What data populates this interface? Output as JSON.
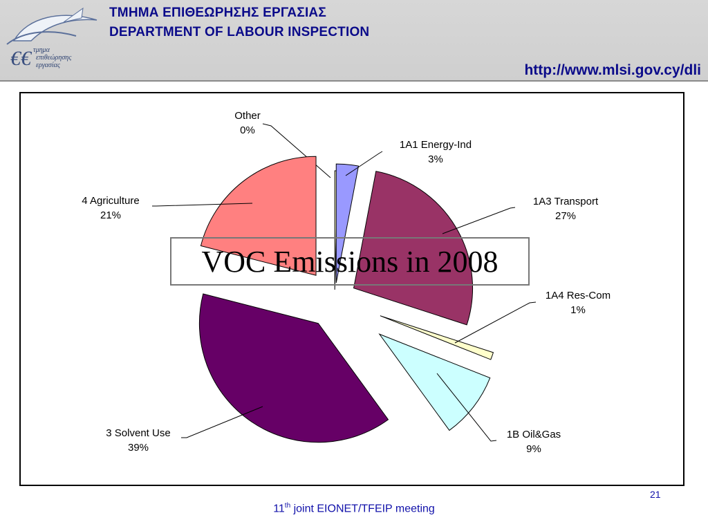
{
  "header": {
    "title_greek": "ΤΜΗΜΑ ΕΠΙΘΕΩΡΗΣΗΣ ΕΡΓΑΣΙΑΣ",
    "title_english": "DEPARTMENT OF LABOUR INSPECTION",
    "url": "http://www.mlsi.gov.cy/dli",
    "logo_text": [
      "τμημα",
      "επιθεώρησης",
      "εργασίας"
    ]
  },
  "overlay_title": "VOC Emissions in 2008",
  "footer": {
    "ordinal": "11",
    "ordinal_suffix": "th",
    "text": " joint EIONET/TFEIP meeting",
    "page_number": "21"
  },
  "chart_data": {
    "type": "pie",
    "title": "VOC Emissions in 2008",
    "slices": [
      {
        "name": "Other",
        "value": 0,
        "label": "0%",
        "color": "#ffffcc"
      },
      {
        "name": "1A1 Energy-Ind",
        "value": 3,
        "label": "3%",
        "color": "#9999ff"
      },
      {
        "name": "1A3 Transport",
        "value": 27,
        "label": "27%",
        "color": "#993366"
      },
      {
        "name": "1A4 Res-Com",
        "value": 1,
        "label": "1%",
        "color": "#ffffcc"
      },
      {
        "name": "1B Oil&Gas",
        "value": 9,
        "label": "9%",
        "color": "#ccffff"
      },
      {
        "name": "3 Solvent Use",
        "value": 39,
        "label": "39%",
        "color": "#660066"
      },
      {
        "name": "4 Agriculture",
        "value": 21,
        "label": "21%",
        "color": "#ff8080"
      }
    ]
  }
}
